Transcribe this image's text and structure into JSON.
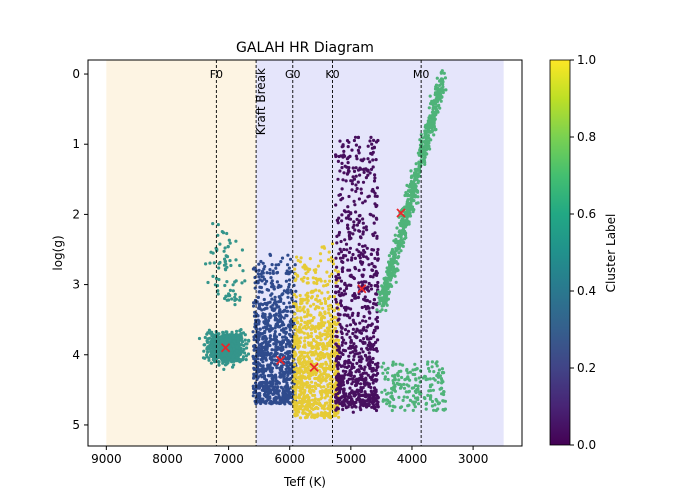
{
  "chart_data": {
    "type": "scatter",
    "title": "GALAH HR Diagram",
    "xlabel": "Teff (K)",
    "ylabel": "log(g)",
    "xlim": [
      9300,
      2200
    ],
    "ylim": [
      5.3,
      -0.2
    ],
    "x_inverted": true,
    "y_inverted": true,
    "grid": false,
    "xticks": [
      9000,
      8000,
      7000,
      6000,
      5000,
      4000,
      3000
    ],
    "yticks": [
      0,
      1,
      2,
      3,
      4,
      5
    ],
    "shaded_regions": [
      {
        "x_range": [
          9000,
          6550
        ],
        "color": "#fdf4e3"
      },
      {
        "x_range": [
          6550,
          2500
        ],
        "color": "#e5e5fb"
      }
    ],
    "vlines": [
      {
        "x": 7200,
        "label": "F0"
      },
      {
        "x": 6550,
        "label": "Kraft Break"
      },
      {
        "x": 5950,
        "label": "G0"
      },
      {
        "x": 5300,
        "label": "K0"
      },
      {
        "x": 3850,
        "label": "M0"
      }
    ],
    "colorbar": {
      "label": "Cluster Label",
      "range": [
        0,
        1
      ],
      "ticks": [
        0.0,
        0.2,
        0.4,
        0.6,
        0.8,
        1.0
      ]
    },
    "clusters": [
      {
        "label": 0.4,
        "color": "#35958b",
        "teff_range": [
          6450,
          8000
        ],
        "logg_range": [
          3.2,
          4.5
        ],
        "centroid": [
          7050,
          3.9
        ]
      },
      {
        "label": 0.2,
        "color": "#2f4b8d",
        "teff_range": [
          5900,
          6600
        ],
        "logg_range": [
          2.5,
          4.7
        ],
        "centroid": [
          6150,
          4.08
        ]
      },
      {
        "label": 1.0,
        "color": "#e6cb36",
        "teff_range": [
          5200,
          5950
        ],
        "logg_range": [
          2.4,
          4.9
        ],
        "centroid": [
          5600,
          4.18
        ]
      },
      {
        "label": 0.0,
        "color": "#470f5e",
        "teff_range": [
          4500,
          5300
        ],
        "logg_range": [
          0.8,
          4.8
        ],
        "centroid": [
          4820,
          3.06
        ]
      },
      {
        "label": 0.6,
        "color": "#4fb379",
        "teff_range": [
          3400,
          4500
        ],
        "logg_range": [
          0.0,
          4.8
        ],
        "centroid": [
          4180,
          1.98
        ]
      }
    ],
    "centroid_marker_color": "#e8262a"
  }
}
